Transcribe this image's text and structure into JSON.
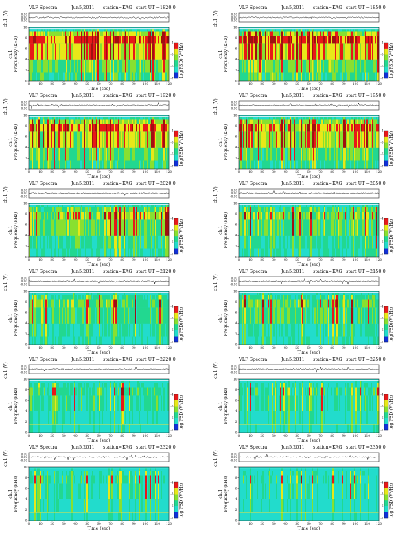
{
  "figure": {
    "spectra_label": "VLF Spectra",
    "date": "Jun5,2011",
    "station": "station=KAG",
    "start_prefix": "start  UT  =",
    "waveform_ylabel": "ch.1 (V)",
    "waveform_ticks": [
      "0.10",
      "0.00",
      "-0.10"
    ],
    "spec_ylabel_ch": "ch.1",
    "spec_ylabel": "Frequency (kHz)",
    "spec_ticks": [
      "0",
      "2",
      "4",
      "6",
      "8",
      "10"
    ],
    "x_ticks": [
      "0",
      "10",
      "20",
      "30",
      "40",
      "50",
      "60",
      "70",
      "80",
      "90",
      "100",
      "110",
      "120"
    ],
    "xlabel": "Time (sec)",
    "cbar_label": "log(PSD)(V²/Hz)",
    "cbar_ticks": [
      "-7",
      "-6",
      "-5",
      "-4"
    ]
  },
  "colors": {
    "low": "#1030d8",
    "mid": "#22d890",
    "cyan": "#22dccc",
    "yellow": "#e8e818",
    "green": "#88e030",
    "red": "#e81818",
    "darkred": "#a01010"
  },
  "chart_data": [
    {
      "type": "heatmap",
      "start_time": "1820:0",
      "xlim": [
        0,
        120
      ],
      "ylim": [
        0,
        10
      ],
      "intensity": 0.92
    },
    {
      "type": "heatmap",
      "start_time": "1850:0",
      "xlim": [
        0,
        120
      ],
      "ylim": [
        0,
        10
      ],
      "intensity": 0.92
    },
    {
      "type": "heatmap",
      "start_time": "1920:0",
      "xlim": [
        0,
        120
      ],
      "ylim": [
        0,
        10
      ],
      "intensity": 0.82
    },
    {
      "type": "heatmap",
      "start_time": "1950:0",
      "xlim": [
        0,
        120
      ],
      "ylim": [
        0,
        10
      ],
      "intensity": 0.78
    },
    {
      "type": "heatmap",
      "start_time": "2020:0",
      "xlim": [
        0,
        120
      ],
      "ylim": [
        0,
        10
      ],
      "intensity": 0.62
    },
    {
      "type": "heatmap",
      "start_time": "2050:0",
      "xlim": [
        0,
        120
      ],
      "ylim": [
        0,
        10
      ],
      "intensity": 0.55
    },
    {
      "type": "heatmap",
      "start_time": "2120:0",
      "xlim": [
        0,
        120
      ],
      "ylim": [
        0,
        10
      ],
      "intensity": 0.42
    },
    {
      "type": "heatmap",
      "start_time": "2150:0",
      "xlim": [
        0,
        120
      ],
      "ylim": [
        0,
        10
      ],
      "intensity": 0.45
    },
    {
      "type": "heatmap",
      "start_time": "2220:0",
      "xlim": [
        0,
        120
      ],
      "ylim": [
        0,
        10
      ],
      "intensity": 0.32
    },
    {
      "type": "heatmap",
      "start_time": "2250:0",
      "xlim": [
        0,
        120
      ],
      "ylim": [
        0,
        10
      ],
      "intensity": 0.3
    },
    {
      "type": "heatmap",
      "start_time": "2320:0",
      "xlim": [
        0,
        120
      ],
      "ylim": [
        0,
        10
      ],
      "intensity": 0.24
    },
    {
      "type": "heatmap",
      "start_time": "2350:0",
      "xlim": [
        0,
        120
      ],
      "ylim": [
        0,
        10
      ],
      "intensity": 0.22
    }
  ]
}
